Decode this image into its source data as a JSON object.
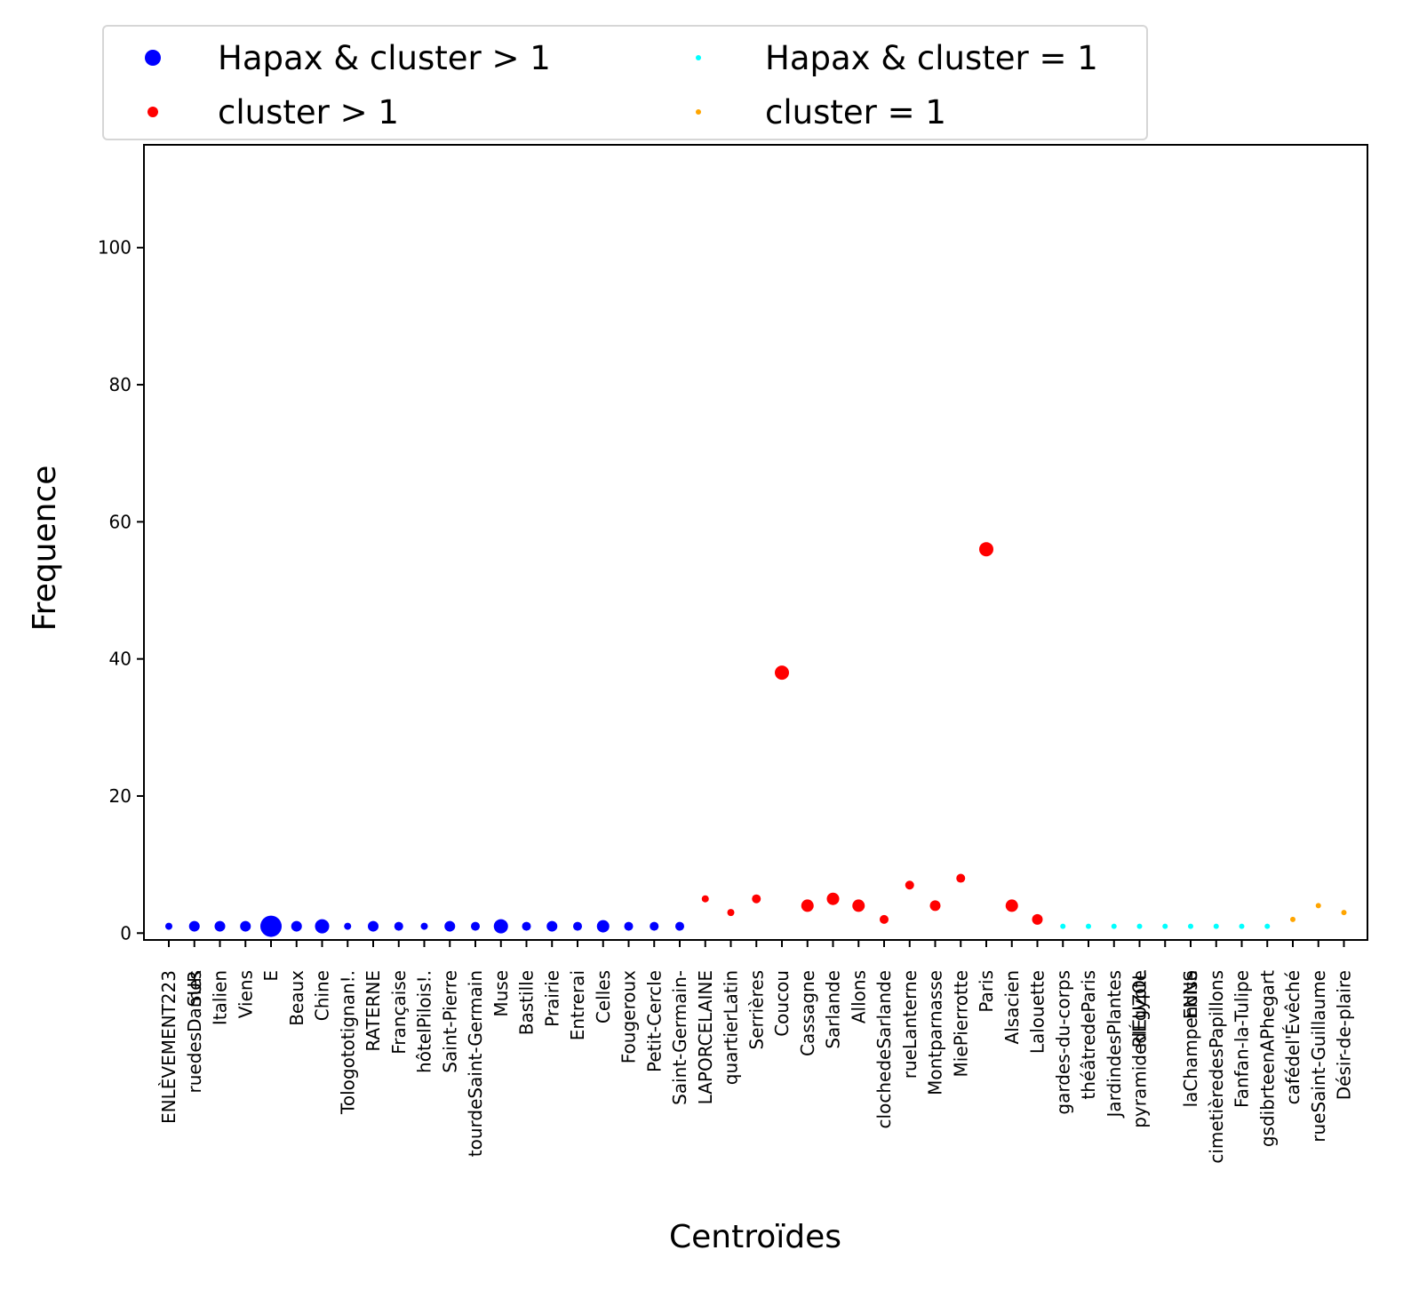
{
  "chart_data": {
    "type": "scatter",
    "xlabel": "Centroïdes",
    "ylabel": "Frequence",
    "ylim": [
      -1,
      115
    ],
    "yticks": [
      0,
      20,
      40,
      60,
      80,
      100
    ],
    "grid": false,
    "legend_placement": "top (above plot, 2 columns)",
    "categories": [
      "ENLÈVEMENT223",
      "ruedesDames",
      "Italien",
      "Viens",
      "E",
      "Beaux",
      "Chine",
      "Tologototignan!.",
      "RATERNE",
      "Française",
      "hôtelPilois!.",
      "Saint-Pierre",
      "tourdeSaint-Germain",
      "Muse",
      "Bastille",
      "Prairie",
      "Entrerai",
      "Celles",
      "Fougeroux",
      "Petit-Cercle",
      "Saint-Germain-",
      "LAPORCELAINE",
      "quartierLatin",
      "Serrières",
      "Coucou",
      "Cassagne",
      "Sarlande",
      "Allons",
      "clochedeSarlande",
      "rueLanterne",
      "Montparnasse",
      "MiePierrotte",
      "Paris",
      "Alsacien",
      "Lalouette",
      "gardes-du-corps",
      "théâtredeParis",
      "JardindesPlantes",
      "pyramidedÉgypte",
      "",
      "laChampenoise",
      "cimetièredesPapillons",
      "Fanfan-la-Tulipe",
      "gsdibrteenAPhegart",
      "cafédel'Évêché",
      "rueSaint-Guillaume",
      "Désir-de-plaire"
    ],
    "extra_tick_labels": [
      "SUR",
      "RIEUZOL",
      "ENNS"
    ],
    "series": [
      {
        "name": "Hapax & cluster > 1",
        "color": "#0000ff",
        "x": [
          "ENLÈVEMENT223",
          "ruedesDames",
          "Italien",
          "Viens",
          "E",
          "Beaux",
          "Chine",
          "Tologototignan!.",
          "RATERNE",
          "Française",
          "hôtelPilois!.",
          "Saint-Pierre",
          "tourdeSaint-Germain",
          "Muse",
          "Bastille",
          "Prairie",
          "Entrerai",
          "Celles",
          "Fougeroux",
          "Petit-Cercle",
          "Saint-Germain-"
        ],
        "y": [
          1,
          1,
          1,
          1,
          1,
          1,
          1,
          1,
          1,
          1,
          1,
          1,
          1,
          1,
          1,
          1,
          1,
          1,
          1,
          1,
          1
        ],
        "size": [
          4,
          6,
          6,
          6,
          12,
          6,
          8,
          4,
          6,
          5,
          4,
          6,
          5,
          8,
          5,
          6,
          5,
          7,
          5,
          5,
          5
        ]
      },
      {
        "name": "cluster > 1",
        "color": "#ff0000",
        "x": [
          "LAPORCELAINE",
          "quartierLatin",
          "Serrières",
          "Coucou",
          "Cassagne",
          "Sarlande",
          "Allons",
          "clochedeSarlande",
          "rueLanterne",
          "Montparnasse",
          "MiePierrotte",
          "Paris",
          "Alsacien",
          "Lalouette"
        ],
        "y": [
          5,
          3,
          5,
          38,
          4,
          5,
          4,
          2,
          7,
          4,
          8,
          56,
          4,
          2
        ],
        "size": [
          4,
          4,
          5,
          8,
          7,
          7,
          7,
          5,
          5,
          6,
          5,
          8,
          7,
          6
        ]
      },
      {
        "name": "Hapax & cluster = 1",
        "color": "#00ffff",
        "x": [
          "gardes-du-corps",
          "théâtredeParis",
          "JardindesPlantes",
          "pyramidedÉgypte",
          "",
          "laChampenoise",
          "cimetièredesPapillons",
          "Fanfan-la-Tulipe",
          "gsdibrteenAPhegart"
        ],
        "y": [
          1,
          1,
          1,
          1,
          1,
          1,
          1,
          1,
          1
        ],
        "size": [
          3,
          3,
          3,
          3,
          3,
          3,
          3,
          3,
          3
        ]
      },
      {
        "name": "cluster = 1",
        "color": "#ffa500",
        "x": [
          "cafédel'Évêché",
          "rueSaint-Guillaume",
          "Désir-de-plaire"
        ],
        "y": [
          2,
          4,
          3
        ],
        "size": [
          3,
          3,
          3
        ]
      }
    ]
  }
}
